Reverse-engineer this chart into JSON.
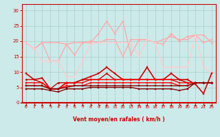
{
  "x": [
    0,
    1,
    2,
    3,
    4,
    5,
    6,
    7,
    8,
    9,
    10,
    11,
    12,
    13,
    14,
    15,
    16,
    17,
    18,
    19,
    20,
    21,
    22,
    23
  ],
  "series": [
    {
      "y": [
        19.5,
        17.5,
        19.5,
        19.5,
        19.5,
        19.0,
        19.5,
        19.5,
        20.0,
        19.5,
        20.5,
        20.5,
        15.0,
        20.5,
        20.5,
        20.5,
        19.5,
        20.5,
        21.5,
        20.5,
        20.5,
        22.0,
        19.5,
        20.5
      ],
      "color": "#ffaaaa",
      "lw": 1.0,
      "marker": "s",
      "ms": 1.5
    },
    {
      "y": [
        19.5,
        17.5,
        19.5,
        13.5,
        13.5,
        19.0,
        15.5,
        19.5,
        19.5,
        22.5,
        26.5,
        22.5,
        26.5,
        15.5,
        20.5,
        20.5,
        19.5,
        19.0,
        22.5,
        20.0,
        21.5,
        22.0,
        22.0,
        19.5
      ],
      "color": "#ffaaaa",
      "lw": 1.0,
      "marker": "^",
      "ms": 2
    },
    {
      "y": [
        19.5,
        17.5,
        13.5,
        13.5,
        13.5,
        8.5,
        8.5,
        13.5,
        19.0,
        19.5,
        19.5,
        19.5,
        19.5,
        19.5,
        15.0,
        20.5,
        19.5,
        11.5,
        11.5,
        11.5,
        11.5,
        22.0,
        11.5,
        9.5
      ],
      "color": "#ffcccc",
      "lw": 1.0,
      "marker": "v",
      "ms": 2
    },
    {
      "y": [
        9.5,
        7.5,
        8.0,
        4.5,
        4.5,
        6.5,
        6.5,
        7.5,
        8.5,
        9.5,
        11.5,
        9.5,
        7.5,
        7.5,
        7.5,
        11.5,
        7.5,
        7.5,
        9.5,
        7.5,
        7.5,
        6.0,
        3.0,
        9.5
      ],
      "color": "#cc0000",
      "lw": 1.2,
      "marker": "s",
      "ms": 2
    },
    {
      "y": [
        7.5,
        7.5,
        6.5,
        4.5,
        6.5,
        6.5,
        6.5,
        7.5,
        7.5,
        7.5,
        9.5,
        7.5,
        7.5,
        7.5,
        7.5,
        7.5,
        7.5,
        7.5,
        7.5,
        7.5,
        6.5,
        6.5,
        6.5,
        6.5
      ],
      "color": "#cc0000",
      "lw": 1.0,
      "marker": "D",
      "ms": 1.5
    },
    {
      "y": [
        6.5,
        6.5,
        6.5,
        4.5,
        4.5,
        6.5,
        6.5,
        6.5,
        7.5,
        7.5,
        7.5,
        7.5,
        7.5,
        7.5,
        7.5,
        7.5,
        7.5,
        7.5,
        7.5,
        6.5,
        6.5,
        6.5,
        6.5,
        6.5
      ],
      "color": "#ff0000",
      "lw": 1.0,
      "marker": "s",
      "ms": 1.5
    },
    {
      "y": [
        5.5,
        5.5,
        5.5,
        4.5,
        4.5,
        5.5,
        5.5,
        5.5,
        6.5,
        6.5,
        6.5,
        6.5,
        6.5,
        6.5,
        6.5,
        6.5,
        6.5,
        6.5,
        6.5,
        5.5,
        5.5,
        6.5,
        6.5,
        6.5
      ],
      "color": "#ff0000",
      "lw": 1.0,
      "marker": "s",
      "ms": 1.5
    },
    {
      "y": [
        5.5,
        5.5,
        5.5,
        4.5,
        4.5,
        5.0,
        5.5,
        5.5,
        5.5,
        5.5,
        5.5,
        5.5,
        5.5,
        5.5,
        5.5,
        5.5,
        5.5,
        5.5,
        5.5,
        5.5,
        5.5,
        6.5,
        6.5,
        6.5
      ],
      "color": "#880000",
      "lw": 1.0,
      "marker": "s",
      "ms": 1.5
    },
    {
      "y": [
        4.5,
        4.5,
        4.5,
        4.0,
        3.5,
        4.5,
        4.5,
        4.5,
        5.0,
        5.0,
        5.0,
        5.0,
        5.0,
        5.0,
        4.5,
        4.5,
        4.5,
        4.5,
        4.5,
        4.0,
        4.5,
        6.5,
        6.5,
        6.5
      ],
      "color": "#880000",
      "lw": 1.0,
      "marker": "s",
      "ms": 1.5
    }
  ],
  "xlabel": "Vent moyen/en rafales ( km/h )",
  "xlim": [
    -0.5,
    23.5
  ],
  "ylim": [
    0,
    32
  ],
  "yticks": [
    0,
    5,
    10,
    15,
    20,
    25,
    30
  ],
  "xticks": [
    0,
    1,
    2,
    3,
    4,
    5,
    6,
    7,
    8,
    9,
    10,
    11,
    12,
    13,
    14,
    15,
    16,
    17,
    18,
    19,
    20,
    21,
    22,
    23
  ],
  "bg_color": "#cceaea",
  "grid_color": "#aacccc",
  "axis_color": "#cc0000",
  "label_color": "#cc0000",
  "tick_color": "#cc0000",
  "arrow_angles": [
    45,
    0,
    45,
    45,
    0,
    0,
    45,
    45,
    0,
    0,
    45,
    0,
    45,
    0,
    45,
    45,
    0,
    45,
    45,
    0,
    45,
    45,
    0,
    45
  ]
}
